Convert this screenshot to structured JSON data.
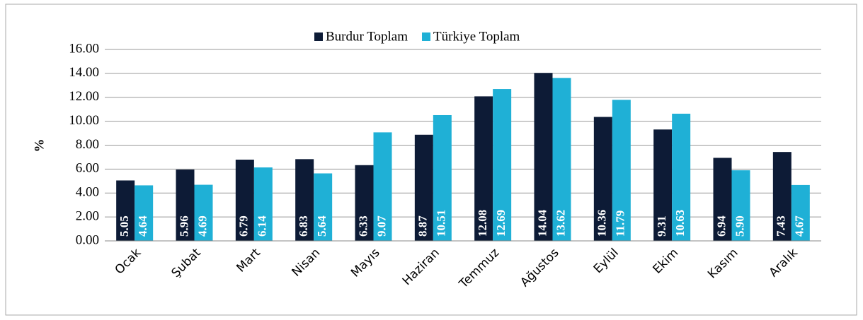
{
  "chart_data": {
    "type": "bar",
    "y_label": "%",
    "categories": [
      "Ocak",
      "Şubat",
      "Mart",
      "Nisan",
      "Mayıs",
      "Haziran",
      "Temmuz",
      "Ağustos",
      "Eylül",
      "Ekim",
      "Kasım",
      "Aralık"
    ],
    "series": [
      {
        "name": "Burdur Toplam",
        "color": "#0d1b36",
        "values": [
          5.05,
          5.96,
          6.79,
          6.83,
          6.33,
          8.87,
          12.08,
          14.04,
          10.36,
          9.31,
          6.94,
          7.43
        ],
        "value_labels": [
          "5.05",
          "5.96",
          "6.79",
          "6.83",
          "6.33",
          "8.87",
          "12.08",
          "14.04",
          "10.36",
          "9.31",
          "6.94",
          "7.43"
        ]
      },
      {
        "name": "Türkiye Toplam",
        "color": "#1fb0d6",
        "values": [
          4.64,
          4.69,
          6.14,
          5.64,
          9.07,
          10.51,
          12.69,
          13.62,
          11.79,
          10.63,
          5.9,
          4.67
        ],
        "value_labels": [
          "4.64",
          "4.69",
          "6.14",
          "5.64",
          "9.07",
          "10.51",
          "12.69",
          "13.62",
          "11.79",
          "10.63",
          "5.90",
          "4.67"
        ]
      }
    ],
    "ylim": [
      0,
      16
    ],
    "yticks": [
      {
        "value": 0,
        "label": "0.00"
      },
      {
        "value": 2,
        "label": "2.00"
      },
      {
        "value": 4,
        "label": "4.00"
      },
      {
        "value": 6,
        "label": "6.00"
      },
      {
        "value": 8,
        "label": "8.00"
      },
      {
        "value": 10,
        "label": "10.00"
      },
      {
        "value": 12,
        "label": "12.00"
      },
      {
        "value": 14,
        "label": "14.00"
      },
      {
        "value": 16,
        "label": "16.00"
      }
    ],
    "grid": true,
    "legend": "top"
  }
}
